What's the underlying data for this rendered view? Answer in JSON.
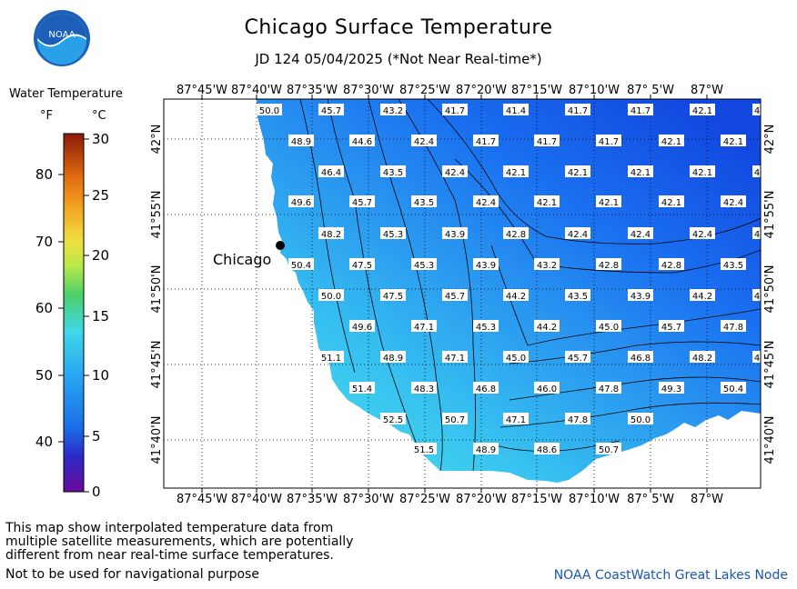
{
  "header": {
    "title": "Chicago Surface Temperature",
    "subtitle": "JD 124 05/04/2025 (*Not Near Real-time*)",
    "logo_text": "NOAA"
  },
  "legend": {
    "title": "Water Temperature",
    "unit_f": "°F",
    "unit_c": "°C",
    "f_ticks": [
      "80",
      "70",
      "60",
      "50",
      "40"
    ],
    "c_ticks": [
      "30",
      "25",
      "20",
      "15",
      "10",
      "5",
      "0"
    ],
    "colors": [
      "#6a0a9a",
      "#2a2ac8",
      "#1a6fe8",
      "#2aa8f0",
      "#40d8e8",
      "#4ccf6a",
      "#b8e84a",
      "#f0e040",
      "#f0a020",
      "#e06a10",
      "#b83010",
      "#8a1a08"
    ]
  },
  "map": {
    "lon_labels": [
      "87°45'W",
      "87°40'W",
      "87°35'W",
      "87°30'W",
      "87°25'W",
      "87°20'W",
      "87°15'W",
      "87°10'W",
      "87° 5'W",
      "87°W"
    ],
    "lat_labels": [
      "42°N",
      "41°55'N",
      "41°50'N",
      "41°45'N",
      "41°40'N"
    ],
    "city": "Chicago",
    "temperatures": [
      [
        "50.0",
        "45.7",
        "43.2",
        "41.7",
        "41.4",
        "41.7",
        "41.7",
        "42.1",
        "4"
      ],
      [
        "48.9",
        "44.6",
        "42.4",
        "41.7",
        "41.7",
        "41.7",
        "42.1",
        "42.1"
      ],
      [
        "46.4",
        "43.5",
        "42.4",
        "42.1",
        "42.1",
        "42.1",
        "42.1",
        "4"
      ],
      [
        "49.6",
        "45.7",
        "43.5",
        "42.4",
        "42.1",
        "42.1",
        "42.1",
        "42.4"
      ],
      [
        "48.2",
        "45.3",
        "43.9",
        "42.8",
        "42.4",
        "42.4",
        "42.4",
        "4"
      ],
      [
        "50.4",
        "47.5",
        "45.3",
        "43.9",
        "43.2",
        "42.8",
        "42.8",
        "43.5"
      ],
      [
        "50.0",
        "47.5",
        "45.7",
        "44.2",
        "43.5",
        "43.9",
        "44.2",
        "4"
      ],
      [
        "49.6",
        "47.1",
        "45.3",
        "44.2",
        "45.0",
        "45.7",
        "47.8"
      ],
      [
        "51.1",
        "48.9",
        "47.1",
        "45.0",
        "45.7",
        "46.8",
        "48.2",
        "4"
      ],
      [
        "51.4",
        "48.3",
        "46.8",
        "46.0",
        "47.8",
        "49.3",
        "50.4"
      ],
      [
        "52.5",
        "50.7",
        "47.1",
        "47.8",
        "50.0"
      ],
      [
        "51.5",
        "48.9",
        "48.6",
        "50.7"
      ]
    ]
  },
  "footer": {
    "note_line1": "This map show interpolated temperature data from",
    "note_line2": "multiple satellite measurements, which are potentially",
    "note_line3": "different from near real-time surface temperatures.",
    "nav_note": "Not to be used for navigational purpose",
    "credit": "NOAA CoastWatch Great Lakes Node"
  }
}
